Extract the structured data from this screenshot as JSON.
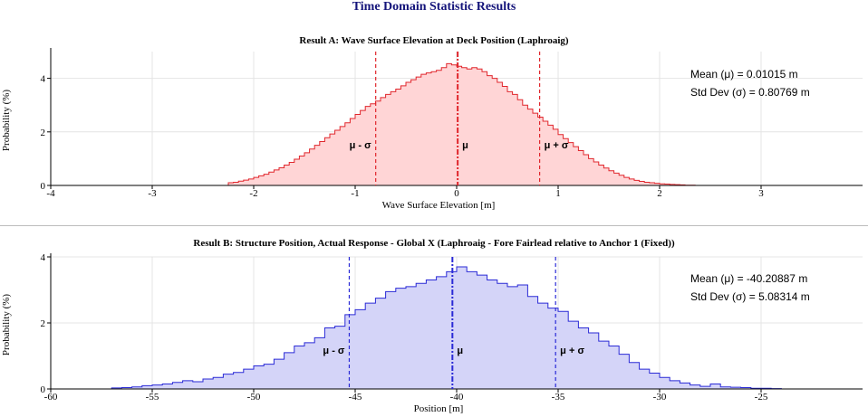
{
  "main_title": "Time Domain Statistic Results",
  "chart_data": [
    {
      "type": "area",
      "subtype": "step-histogram",
      "title": "Result A: Wave Surface Elevation at Deck Position (Laphroaig)",
      "xlabel": "Wave Surface Elevation [m]",
      "ylabel": "Probability (%)",
      "xlim": [
        -4,
        4
      ],
      "ylim": [
        0,
        5
      ],
      "xticks": [
        -4,
        -3,
        -2,
        -1,
        0,
        1,
        2,
        3
      ],
      "yticks": [
        0,
        2,
        4
      ],
      "grid": true,
      "color": "#e0262c",
      "fill": "#ffd5d6",
      "mean": 0.01015,
      "std": 0.80769,
      "stats": [
        "Mean (μ) = 0.01015 m",
        "Std Dev (σ) = 0.80769 m"
      ],
      "marker_labels": [
        "μ - σ",
        "μ",
        "μ + σ"
      ],
      "x": [
        -2.25,
        -2.2,
        -2.15,
        -2.1,
        -2.05,
        -2.0,
        -1.95,
        -1.9,
        -1.85,
        -1.8,
        -1.75,
        -1.7,
        -1.65,
        -1.6,
        -1.55,
        -1.5,
        -1.45,
        -1.4,
        -1.35,
        -1.3,
        -1.25,
        -1.2,
        -1.15,
        -1.1,
        -1.05,
        -1.0,
        -0.95,
        -0.9,
        -0.85,
        -0.8,
        -0.75,
        -0.7,
        -0.65,
        -0.6,
        -0.55,
        -0.5,
        -0.45,
        -0.4,
        -0.35,
        -0.3,
        -0.25,
        -0.2,
        -0.15,
        -0.1,
        -0.05,
        0.0,
        0.05,
        0.1,
        0.15,
        0.2,
        0.25,
        0.3,
        0.35,
        0.4,
        0.45,
        0.5,
        0.55,
        0.6,
        0.65,
        0.7,
        0.75,
        0.8,
        0.85,
        0.9,
        0.95,
        1.0,
        1.05,
        1.1,
        1.15,
        1.2,
        1.25,
        1.3,
        1.35,
        1.4,
        1.45,
        1.5,
        1.55,
        1.6,
        1.65,
        1.7,
        1.75,
        1.8,
        1.85,
        1.9,
        1.95,
        2.0,
        2.05,
        2.1,
        2.15,
        2.2,
        2.25,
        2.3
      ],
      "values": [
        0.1,
        0.12,
        0.16,
        0.2,
        0.24,
        0.3,
        0.36,
        0.42,
        0.5,
        0.58,
        0.66,
        0.76,
        0.86,
        0.98,
        1.1,
        1.22,
        1.36,
        1.5,
        1.64,
        1.78,
        1.92,
        2.06,
        2.2,
        2.34,
        2.5,
        2.65,
        2.8,
        2.95,
        3.05,
        3.15,
        3.28,
        3.4,
        3.5,
        3.6,
        3.72,
        3.85,
        3.95,
        4.05,
        4.15,
        4.2,
        4.25,
        4.3,
        4.4,
        4.55,
        4.5,
        4.45,
        4.4,
        4.35,
        4.4,
        4.35,
        4.25,
        4.1,
        4.0,
        3.85,
        3.7,
        3.5,
        3.4,
        3.2,
        3.0,
        2.85,
        2.7,
        2.55,
        2.4,
        2.25,
        2.1,
        1.9,
        1.75,
        1.6,
        1.45,
        1.3,
        1.15,
        1.0,
        0.88,
        0.76,
        0.65,
        0.55,
        0.46,
        0.38,
        0.3,
        0.24,
        0.19,
        0.15,
        0.12,
        0.1,
        0.08,
        0.06,
        0.05,
        0.04,
        0.03,
        0.02,
        0.01,
        0.01
      ]
    },
    {
      "type": "area",
      "subtype": "step-histogram",
      "title": "Result B: Structure Position, Actual Response - Global X (Laphroaig - Fore Fairlead relative to Anchor 1 (Fixed))",
      "xlabel": "Position [m]",
      "ylabel": "Probability (%)",
      "xlim": [
        -60,
        -20
      ],
      "ylim": [
        0,
        4
      ],
      "xticks": [
        -60,
        -55,
        -50,
        -45,
        -40,
        -35,
        -30,
        -25
      ],
      "yticks": [
        0,
        2,
        4
      ],
      "grid": true,
      "color": "#2a2ad6",
      "fill": "#d4d4f8",
      "mean": -40.20887,
      "std": 5.08314,
      "stats": [
        "Mean (μ) = -40.20887 m",
        "Std Dev (σ) = 5.08314 m"
      ],
      "marker_labels": [
        "μ - σ",
        "μ",
        "μ + σ"
      ],
      "x": [
        -57,
        -56.5,
        -56,
        -55.5,
        -55,
        -54.5,
        -54,
        -53.5,
        -53,
        -52.5,
        -52,
        -51.5,
        -51,
        -50.5,
        -50,
        -49.5,
        -49,
        -48.5,
        -48,
        -47.5,
        -47,
        -46.5,
        -46,
        -45.5,
        -45,
        -44.5,
        -44,
        -43.5,
        -43,
        -42.5,
        -42,
        -41.5,
        -41,
        -40.5,
        -40,
        -39.5,
        -39,
        -38.5,
        -38,
        -37.5,
        -37,
        -36.5,
        -36,
        -35.5,
        -35,
        -34.5,
        -34,
        -33.5,
        -33,
        -32.5,
        -32,
        -31.5,
        -31,
        -30.5,
        -30,
        -29.5,
        -29,
        -28.5,
        -28,
        -27.5,
        -27,
        -26.5,
        -26,
        -25.5,
        -25,
        -24.5
      ],
      "values": [
        0.03,
        0.04,
        0.06,
        0.1,
        0.12,
        0.15,
        0.2,
        0.25,
        0.22,
        0.3,
        0.35,
        0.45,
        0.5,
        0.6,
        0.7,
        0.75,
        0.9,
        1.1,
        1.3,
        1.4,
        1.55,
        1.85,
        1.9,
        2.25,
        2.4,
        2.6,
        2.75,
        2.95,
        3.05,
        3.1,
        3.2,
        3.3,
        3.4,
        3.55,
        3.7,
        3.55,
        3.45,
        3.3,
        3.2,
        3.1,
        3.15,
        2.8,
        2.6,
        2.45,
        2.35,
        2.05,
        1.85,
        1.7,
        1.45,
        1.3,
        1.05,
        0.8,
        0.6,
        0.48,
        0.35,
        0.25,
        0.18,
        0.12,
        0.08,
        0.15,
        0.06,
        0.05,
        0.04,
        0.02,
        0.02,
        0.01
      ]
    }
  ]
}
